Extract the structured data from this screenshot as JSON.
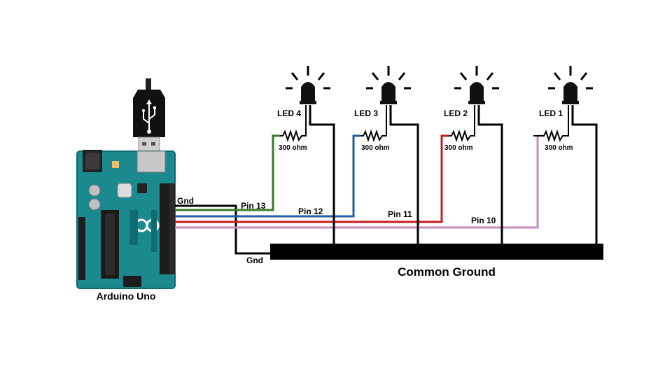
{
  "diagram": {
    "board_label": "Arduino Uno",
    "ground_bar_label": "Common Ground",
    "gnd_top_label": "Gnd",
    "gnd_bottom_label": "Gnd",
    "resistor_label": "300 ohm",
    "leds": [
      {
        "label": "LED 4",
        "pin_label": "Pin 13",
        "wire_color": "#3a7a2a"
      },
      {
        "label": "LED 3",
        "pin_label": "Pin 12",
        "wire_color": "#1f5fa6"
      },
      {
        "label": "LED 2",
        "pin_label": "Pin 11",
        "wire_color": "#c81e1e"
      },
      {
        "label": "LED 1",
        "pin_label": "Pin 10",
        "wire_color": "#c98bbd"
      }
    ],
    "colors": {
      "board": "#1a8a8f",
      "board_dark": "#0f6d72",
      "ground_bar": "#000000",
      "wire_ground": "#000000",
      "usb_plug": "#111111"
    }
  }
}
